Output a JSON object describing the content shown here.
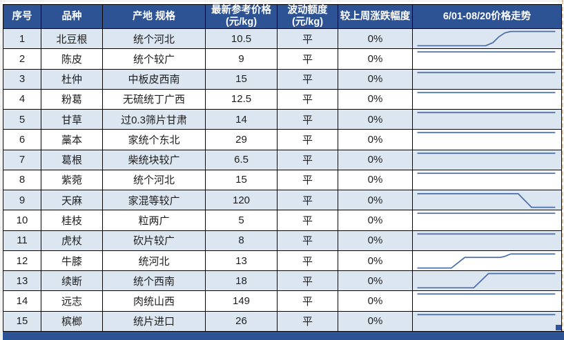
{
  "colors": {
    "header_bg": "#2E5395",
    "row_alt_bg": "#DCE6F1",
    "sparkline": "#4A6DA6",
    "grid_border": "#000000",
    "fill_handle": "#2F55A0"
  },
  "table": {
    "headers": [
      {
        "id": "no",
        "label": "序号"
      },
      {
        "id": "variety",
        "label": "品种"
      },
      {
        "id": "spec",
        "label": "产地 规格"
      },
      {
        "id": "price",
        "label": "最新参考价格\n(元/kg)"
      },
      {
        "id": "fluct",
        "label": "波动额度\n(元/kg)"
      },
      {
        "id": "change",
        "label": "较上周涨跌幅度"
      },
      {
        "id": "trend",
        "label": "6/01-08/20价格走势"
      }
    ],
    "rows": [
      {
        "no": "1",
        "variety": "北豆根",
        "spec": "统个河北",
        "price": "10.5",
        "fluct": "平",
        "change": "0%",
        "spark": "rise_late"
      },
      {
        "no": "2",
        "variety": "陈皮",
        "spec": "统个较广",
        "price": "9",
        "fluct": "平",
        "change": "0%",
        "spark": "flat"
      },
      {
        "no": "3",
        "variety": "杜仲",
        "spec": "中板皮西南",
        "price": "15",
        "fluct": "平",
        "change": "0%",
        "spark": "flat"
      },
      {
        "no": "4",
        "variety": "粉葛",
        "spec": "无硫统丁广西",
        "price": "12.5",
        "fluct": "平",
        "change": "0%",
        "spark": "flat"
      },
      {
        "no": "5",
        "variety": "甘草",
        "spec": "过0.3筛片甘肃",
        "price": "14",
        "fluct": "平",
        "change": "0%",
        "spark": "flat"
      },
      {
        "no": "6",
        "variety": "藁本",
        "spec": "家统个东北",
        "price": "29",
        "fluct": "平",
        "change": "0%",
        "spark": "flat"
      },
      {
        "no": "7",
        "variety": "葛根",
        "spec": "柴统块较广",
        "price": "6.5",
        "fluct": "平",
        "change": "0%",
        "spark": "flat"
      },
      {
        "no": "8",
        "variety": "紫菀",
        "spec": "统个河北",
        "price": "15",
        "fluct": "平",
        "change": "0%",
        "spark": "flat"
      },
      {
        "no": "9",
        "variety": "天麻",
        "spec": "家混等较广",
        "price": "120",
        "fluct": "平",
        "change": "0%",
        "spark": "drop_late"
      },
      {
        "no": "10",
        "variety": "桂枝",
        "spec": "粒两广",
        "price": "5",
        "fluct": "平",
        "change": "0%",
        "spark": "flat"
      },
      {
        "no": "11",
        "variety": "虎杖",
        "spec": "砍片较广",
        "price": "8",
        "fluct": "平",
        "change": "0%",
        "spark": "flat"
      },
      {
        "no": "12",
        "variety": "牛膝",
        "spec": "统河北",
        "price": "13",
        "fluct": "平",
        "change": "0%",
        "spark": "double_rise"
      },
      {
        "no": "13",
        "variety": "续断",
        "spec": "统个西南",
        "price": "18",
        "fluct": "平",
        "change": "0%",
        "spark": "rise_mid"
      },
      {
        "no": "14",
        "variety": "远志",
        "spec": "肉统山西",
        "price": "149",
        "fluct": "平",
        "change": "0%",
        "spark": "flat"
      },
      {
        "no": "15",
        "variety": "槟榔",
        "spec": "统片进口",
        "price": "26",
        "fluct": "平",
        "change": "0%",
        "spark": "flat"
      }
    ]
  },
  "spark_shapes": {
    "flat": [
      [
        0.03,
        0.15
      ],
      [
        0.96,
        0.15
      ]
    ],
    "rise_late": [
      [
        0.03,
        0.86
      ],
      [
        0.49,
        0.86
      ],
      [
        0.54,
        0.7
      ],
      [
        0.58,
        0.4
      ],
      [
        0.62,
        0.2
      ],
      [
        0.66,
        0.13
      ],
      [
        0.96,
        0.13
      ]
    ],
    "drop_late": [
      [
        0.03,
        0.17
      ],
      [
        0.71,
        0.17
      ],
      [
        0.8,
        0.87
      ],
      [
        0.96,
        0.87
      ]
    ],
    "double_rise": [
      [
        0.03,
        0.87
      ],
      [
        0.26,
        0.87
      ],
      [
        0.35,
        0.33
      ],
      [
        0.59,
        0.33
      ],
      [
        0.62,
        0.27
      ],
      [
        0.66,
        0.15
      ],
      [
        0.96,
        0.15
      ]
    ],
    "rise_mid": [
      [
        0.03,
        0.86
      ],
      [
        0.41,
        0.86
      ],
      [
        0.51,
        0.13
      ],
      [
        0.96,
        0.13
      ]
    ]
  }
}
